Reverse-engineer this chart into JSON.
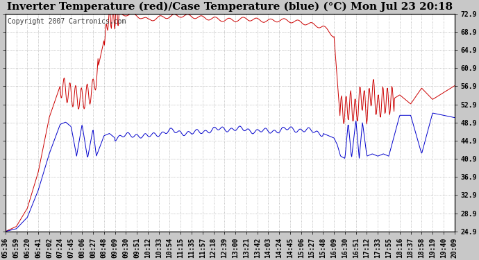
{
  "title": "Inverter Temperature (red)/Case Temperature (blue) (°C) Mon Jul 23 20:18",
  "copyright": "Copyright 2007 Cartronics.com",
  "y_min": 24.9,
  "y_max": 72.9,
  "y_tick_step": 4.0,
  "x_labels": [
    "05:36",
    "05:59",
    "06:20",
    "06:41",
    "07:02",
    "07:24",
    "07:45",
    "08:06",
    "08:27",
    "08:48",
    "09:09",
    "09:30",
    "09:51",
    "10:12",
    "10:33",
    "10:54",
    "11:15",
    "11:35",
    "11:57",
    "12:18",
    "12:39",
    "13:00",
    "13:21",
    "13:42",
    "14:03",
    "14:24",
    "14:45",
    "15:06",
    "15:27",
    "15:48",
    "16:09",
    "16:30",
    "16:51",
    "17:12",
    "17:33",
    "17:55",
    "18:16",
    "18:37",
    "18:58",
    "19:19",
    "19:40",
    "20:09"
  ],
  "red_color": "#cc0000",
  "blue_color": "#0000cc",
  "background_color": "#c8c8c8",
  "plot_bg_color": "#ffffff",
  "grid_color": "#999999",
  "title_fontsize": 11,
  "tick_fontsize": 7,
  "copyright_fontsize": 7
}
